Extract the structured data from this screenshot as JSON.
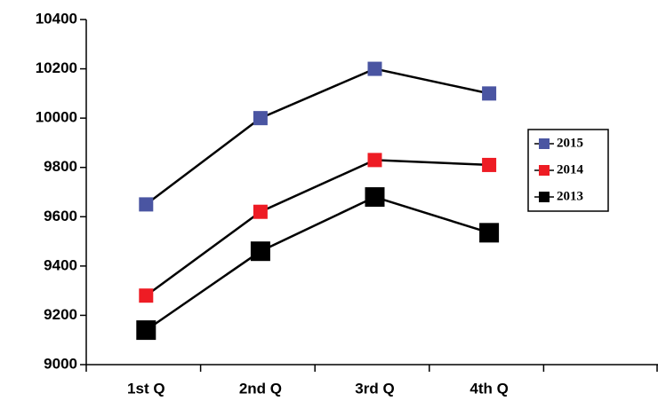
{
  "chart_data": {
    "type": "line",
    "categories": [
      "1st Q",
      "2nd Q",
      "3rd Q",
      "4th Q",
      null
    ],
    "series": [
      {
        "name": "2015",
        "color": "#4a55a2",
        "values": [
          9650,
          10000,
          10200,
          10100,
          null
        ]
      },
      {
        "name": "2014",
        "color": "#ee1c24",
        "values": [
          9280,
          9620,
          9830,
          9810,
          null
        ]
      },
      {
        "name": "2013",
        "color": "#000000",
        "values": [
          9140,
          9460,
          9680,
          9535,
          null
        ]
      }
    ],
    "line_color": "#000000",
    "ylim": [
      9000,
      10400
    ],
    "yticks": [
      9000,
      9200,
      9400,
      9600,
      9800,
      10000,
      10200,
      10400
    ],
    "grid": false,
    "legend": "right"
  }
}
